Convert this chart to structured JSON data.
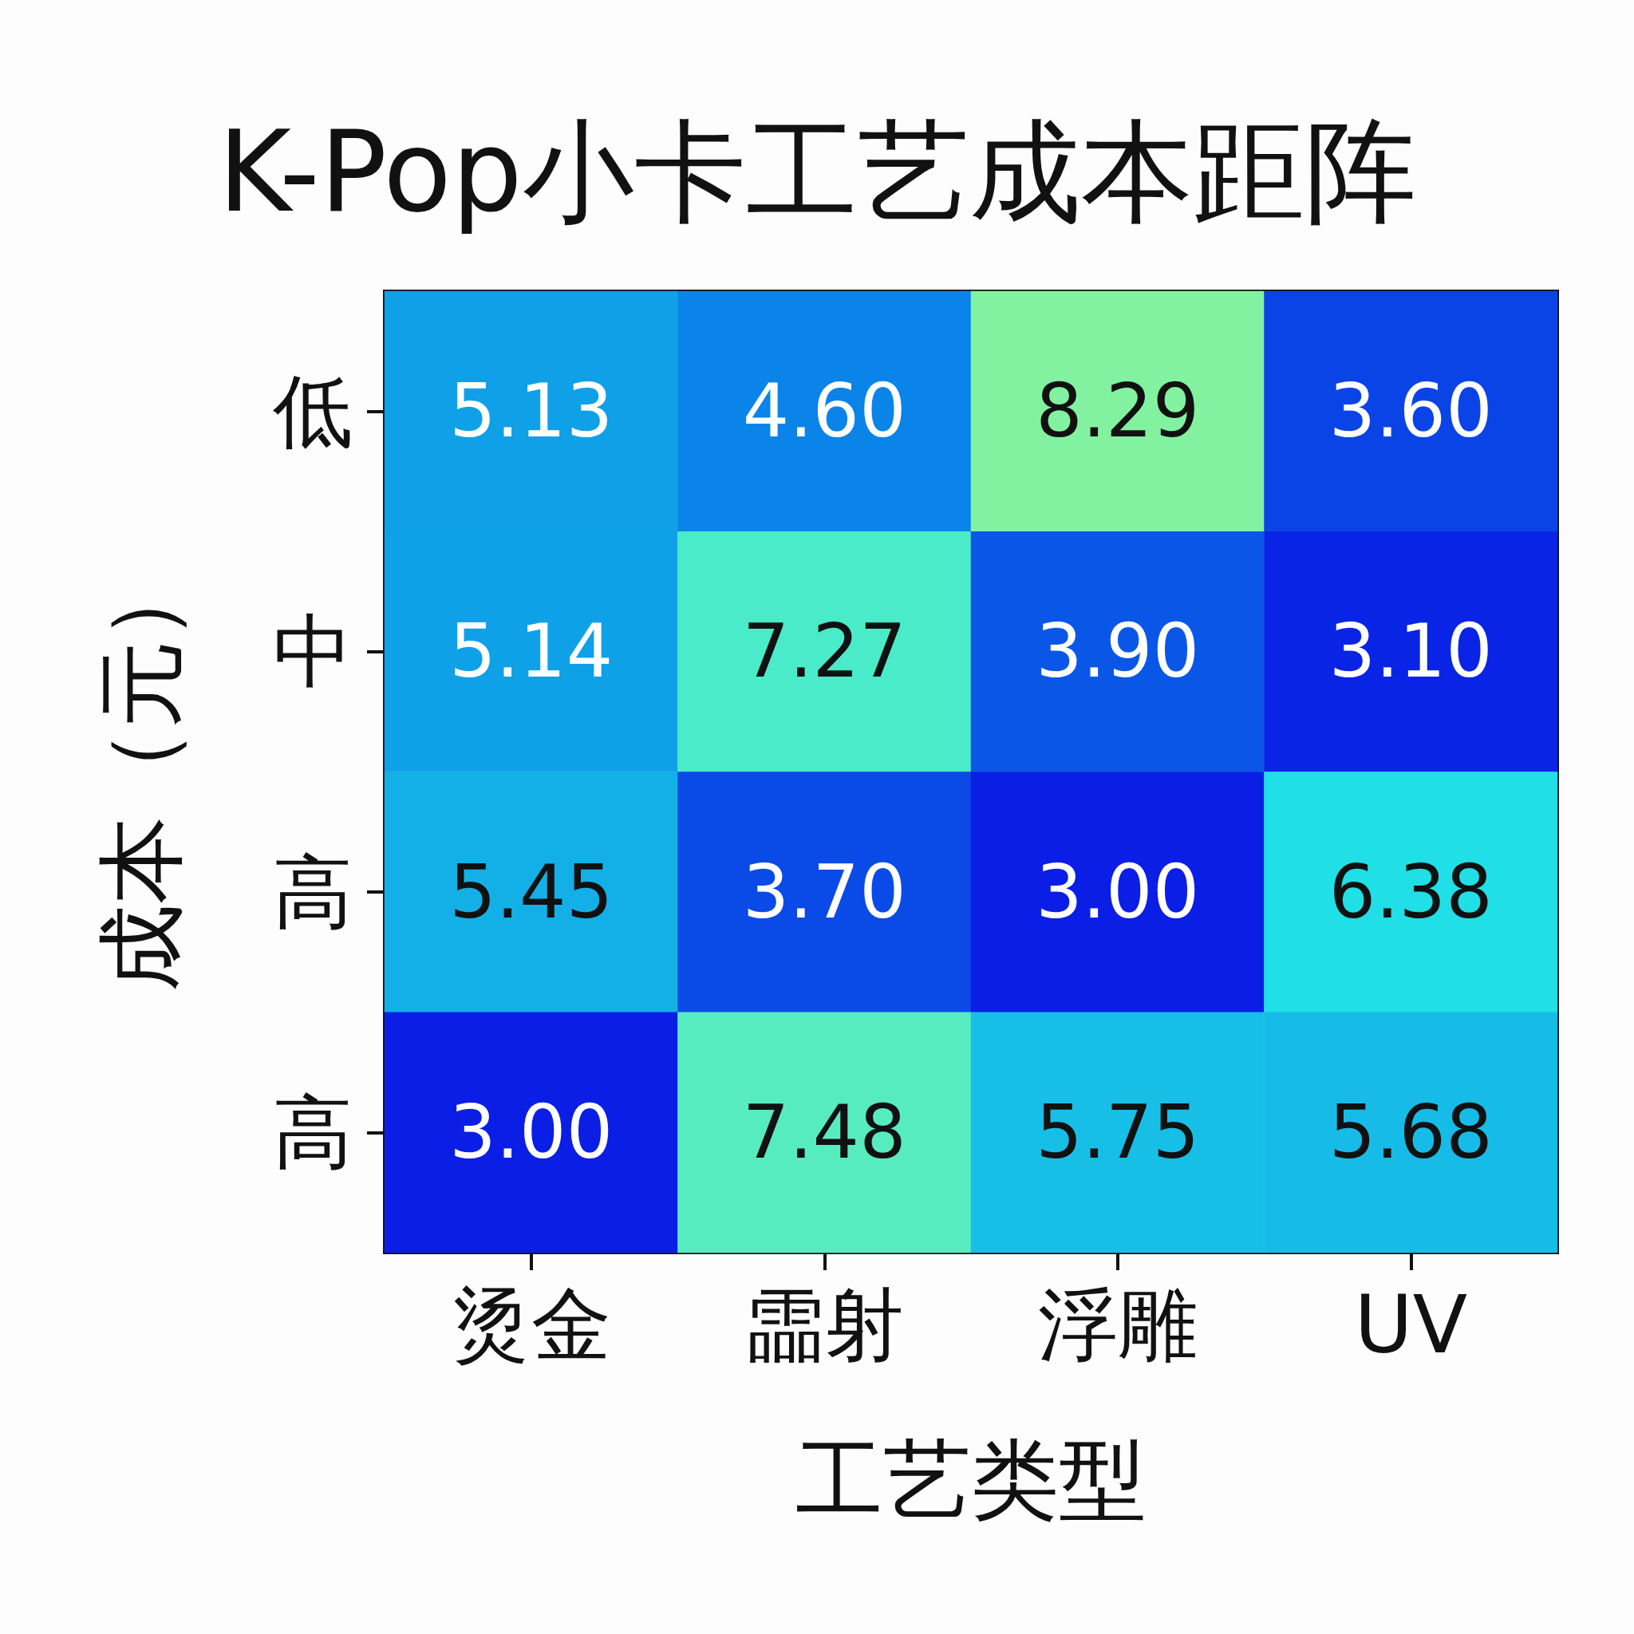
{
  "chart_data": {
    "type": "heatmap",
    "title": "K-Pop小卡工艺成本距阵",
    "xlabel": "工艺类型",
    "ylabel": "成本（元）",
    "categories": [
      "烫金",
      "霝射",
      "浮雕",
      "UV"
    ],
    "y_categories": [
      "低",
      "中",
      "高",
      "高"
    ],
    "cells": [
      [
        5.13,
        4.6,
        8.29,
        3.6
      ],
      [
        5.14,
        7.27,
        3.9,
        3.1
      ],
      [
        5.45,
        3.7,
        3.0,
        6.38
      ],
      [
        3.0,
        7.48,
        5.75,
        5.68
      ]
    ],
    "cell_labels": [
      [
        "5.13",
        "4.60",
        "8.29",
        "3.60"
      ],
      [
        "5.14",
        "7.27",
        "3.90",
        "3.10"
      ],
      [
        "5.45",
        "3.70",
        "3.00",
        "6.38"
      ],
      [
        "3.00",
        "7.48",
        "5.75",
        "5.68"
      ]
    ]
  }
}
